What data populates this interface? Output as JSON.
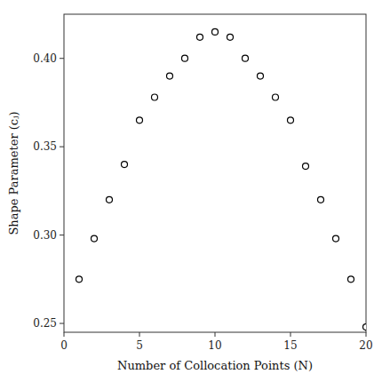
{
  "chart_data": {
    "type": "scatter",
    "xlabel": "Number of Collocation Points (N)",
    "ylabel": "Shape Parameter (cⱼ)",
    "x": [
      1,
      2,
      3,
      4,
      5,
      6,
      7,
      8,
      9,
      10,
      11,
      12,
      13,
      14,
      15,
      16,
      17,
      18,
      19,
      20
    ],
    "values": [
      0.275,
      0.298,
      0.32,
      0.34,
      0.365,
      0.378,
      0.39,
      0.4,
      0.412,
      0.415,
      0.412,
      0.4,
      0.39,
      0.378,
      0.365,
      0.339,
      0.32,
      0.298,
      0.275,
      0.248
    ],
    "xlim": [
      0,
      20
    ],
    "ylim": [
      0.245,
      0.425
    ],
    "xticks": [
      0,
      5,
      10,
      15,
      20
    ],
    "yticks": [
      0.25,
      {
        "value": 0.3,
        "label": "0.30"
      },
      0.35,
      {
        "value": 0.4,
        "label": "0.40"
      }
    ],
    "marker": "circle",
    "color": "black",
    "grid": false
  }
}
